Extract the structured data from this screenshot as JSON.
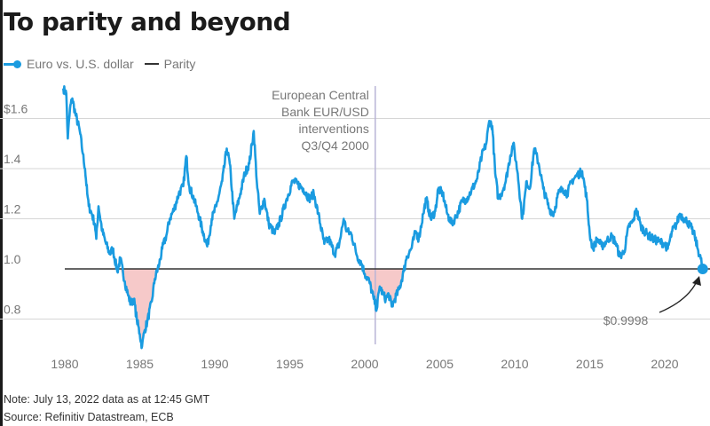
{
  "chart_data": {
    "type": "line",
    "title": "To parity and beyond",
    "legend": {
      "placement": "top-left",
      "items": [
        {
          "label": "Euro vs. U.S. dollar",
          "color": "#1a9be0",
          "marker": "dot"
        },
        {
          "label": "Parity",
          "color": "#333333",
          "marker": "line"
        }
      ]
    },
    "xlabel": "",
    "ylabel": "",
    "xlim": [
      1979.9,
      2022.6
    ],
    "ylim": [
      0.65,
      1.75
    ],
    "grid": true,
    "y_ticks": [
      {
        "value": 1.6,
        "label": "$1.6"
      },
      {
        "value": 1.4,
        "label": "1.4"
      },
      {
        "value": 1.2,
        "label": "1.2"
      },
      {
        "value": 1.0,
        "label": "1.0"
      },
      {
        "value": 0.8,
        "label": "0.8"
      }
    ],
    "x_ticks": [
      {
        "value": 1980,
        "label": "1980"
      },
      {
        "value": 1985,
        "label": "1985"
      },
      {
        "value": 1990,
        "label": "1990"
      },
      {
        "value": 1995,
        "label": "1995"
      },
      {
        "value": 2000,
        "label": "2000"
      },
      {
        "value": 2005,
        "label": "2005"
      },
      {
        "value": 2010,
        "label": "2010"
      },
      {
        "value": 2015,
        "label": "2015"
      },
      {
        "value": 2020,
        "label": "2020"
      }
    ],
    "series": [
      {
        "name": "Euro vs. U.S. dollar",
        "color": "#1a9be0",
        "points": [
          [
            1979.9,
            1.72
          ],
          [
            1980.1,
            1.7
          ],
          [
            1980.2,
            1.52
          ],
          [
            1980.35,
            1.64
          ],
          [
            1980.5,
            1.68
          ],
          [
            1980.7,
            1.62
          ],
          [
            1981.0,
            1.55
          ],
          [
            1981.2,
            1.46
          ],
          [
            1981.35,
            1.4
          ],
          [
            1981.5,
            1.3
          ],
          [
            1981.6,
            1.25
          ],
          [
            1981.8,
            1.22
          ],
          [
            1982.0,
            1.18
          ],
          [
            1982.1,
            1.12
          ],
          [
            1982.25,
            1.25
          ],
          [
            1982.5,
            1.15
          ],
          [
            1982.75,
            1.1
          ],
          [
            1983.0,
            1.06
          ],
          [
            1983.2,
            1.08
          ],
          [
            1983.5,
            0.99
          ],
          [
            1983.7,
            1.04
          ],
          [
            1984.0,
            0.95
          ],
          [
            1984.2,
            0.9
          ],
          [
            1984.4,
            0.86
          ],
          [
            1984.6,
            0.88
          ],
          [
            1984.8,
            0.8
          ],
          [
            1985.0,
            0.74
          ],
          [
            1985.15,
            0.69
          ],
          [
            1985.3,
            0.75
          ],
          [
            1985.5,
            0.79
          ],
          [
            1985.8,
            0.87
          ],
          [
            1986.0,
            0.96
          ],
          [
            1986.3,
            1.02
          ],
          [
            1986.5,
            1.08
          ],
          [
            1986.8,
            1.14
          ],
          [
            1987.0,
            1.2
          ],
          [
            1987.3,
            1.24
          ],
          [
            1987.6,
            1.3
          ],
          [
            1987.9,
            1.33
          ],
          [
            1988.1,
            1.45
          ],
          [
            1988.3,
            1.33
          ],
          [
            1988.6,
            1.28
          ],
          [
            1988.9,
            1.22
          ],
          [
            1989.2,
            1.15
          ],
          [
            1989.5,
            1.09
          ],
          [
            1989.8,
            1.2
          ],
          [
            1990.1,
            1.25
          ],
          [
            1990.5,
            1.35
          ],
          [
            1990.8,
            1.48
          ],
          [
            1991.0,
            1.42
          ],
          [
            1991.3,
            1.2
          ],
          [
            1991.7,
            1.3
          ],
          [
            1992.0,
            1.38
          ],
          [
            1992.3,
            1.42
          ],
          [
            1992.6,
            1.55
          ],
          [
            1992.8,
            1.35
          ],
          [
            1993.0,
            1.22
          ],
          [
            1993.3,
            1.28
          ],
          [
            1993.6,
            1.18
          ],
          [
            1994.0,
            1.14
          ],
          [
            1994.4,
            1.2
          ],
          [
            1994.8,
            1.28
          ],
          [
            1995.2,
            1.35
          ],
          [
            1995.5,
            1.34
          ],
          [
            1995.9,
            1.32
          ],
          [
            1996.3,
            1.28
          ],
          [
            1996.6,
            1.3
          ],
          [
            1996.9,
            1.22
          ],
          [
            1997.3,
            1.1
          ],
          [
            1997.6,
            1.12
          ],
          [
            1998.0,
            1.06
          ],
          [
            1998.3,
            1.1
          ],
          [
            1998.6,
            1.2
          ],
          [
            1998.8,
            1.15
          ],
          [
            1999.1,
            1.14
          ],
          [
            1999.5,
            1.05
          ],
          [
            1999.8,
            1.02
          ],
          [
            2000.0,
            0.98
          ],
          [
            2000.3,
            0.95
          ],
          [
            2000.6,
            0.88
          ],
          [
            2000.8,
            0.84
          ],
          [
            2001.0,
            0.93
          ],
          [
            2001.2,
            0.9
          ],
          [
            2001.4,
            0.88
          ],
          [
            2001.6,
            0.9
          ],
          [
            2001.8,
            0.85
          ],
          [
            2002.0,
            0.88
          ],
          [
            2002.3,
            0.92
          ],
          [
            2002.6,
            0.99
          ],
          [
            2002.8,
            1.05
          ],
          [
            2003.1,
            1.08
          ],
          [
            2003.4,
            1.15
          ],
          [
            2003.6,
            1.12
          ],
          [
            2003.9,
            1.22
          ],
          [
            2004.1,
            1.28
          ],
          [
            2004.4,
            1.2
          ],
          [
            2004.7,
            1.23
          ],
          [
            2004.9,
            1.32
          ],
          [
            2005.2,
            1.3
          ],
          [
            2005.5,
            1.22
          ],
          [
            2005.8,
            1.18
          ],
          [
            2006.1,
            1.21
          ],
          [
            2006.5,
            1.27
          ],
          [
            2006.8,
            1.28
          ],
          [
            2007.1,
            1.31
          ],
          [
            2007.5,
            1.36
          ],
          [
            2007.8,
            1.45
          ],
          [
            2008.1,
            1.5
          ],
          [
            2008.3,
            1.59
          ],
          [
            2008.5,
            1.57
          ],
          [
            2008.7,
            1.38
          ],
          [
            2008.9,
            1.28
          ],
          [
            2009.1,
            1.3
          ],
          [
            2009.4,
            1.35
          ],
          [
            2009.7,
            1.45
          ],
          [
            2009.9,
            1.5
          ],
          [
            2010.2,
            1.38
          ],
          [
            2010.5,
            1.2
          ],
          [
            2010.8,
            1.35
          ],
          [
            2011.0,
            1.32
          ],
          [
            2011.3,
            1.48
          ],
          [
            2011.6,
            1.42
          ],
          [
            2011.9,
            1.32
          ],
          [
            2012.3,
            1.24
          ],
          [
            2012.6,
            1.22
          ],
          [
            2012.9,
            1.3
          ],
          [
            2013.2,
            1.32
          ],
          [
            2013.5,
            1.3
          ],
          [
            2013.8,
            1.35
          ],
          [
            2014.1,
            1.37
          ],
          [
            2014.5,
            1.39
          ],
          [
            2014.8,
            1.28
          ],
          [
            2015.0,
            1.14
          ],
          [
            2015.2,
            1.08
          ],
          [
            2015.5,
            1.12
          ],
          [
            2015.8,
            1.09
          ],
          [
            2016.1,
            1.11
          ],
          [
            2016.4,
            1.13
          ],
          [
            2016.7,
            1.11
          ],
          [
            2017.0,
            1.05
          ],
          [
            2017.3,
            1.07
          ],
          [
            2017.6,
            1.17
          ],
          [
            2017.9,
            1.19
          ],
          [
            2018.1,
            1.24
          ],
          [
            2018.4,
            1.17
          ],
          [
            2018.8,
            1.14
          ],
          [
            2019.2,
            1.12
          ],
          [
            2019.6,
            1.11
          ],
          [
            2020.0,
            1.1
          ],
          [
            2020.2,
            1.08
          ],
          [
            2020.5,
            1.15
          ],
          [
            2020.8,
            1.18
          ],
          [
            2021.0,
            1.22
          ],
          [
            2021.3,
            1.2
          ],
          [
            2021.5,
            1.19
          ],
          [
            2021.8,
            1.16
          ],
          [
            2022.0,
            1.13
          ],
          [
            2022.2,
            1.08
          ],
          [
            2022.4,
            1.04
          ],
          [
            2022.53,
            0.9998
          ]
        ]
      },
      {
        "name": "Parity",
        "color": "#333333",
        "value": 1.0
      }
    ],
    "shaded_regions": [
      {
        "label": "below parity",
        "x_range": [
          1983.6,
          1986.0
        ],
        "color": "#f6c9c9"
      },
      {
        "label": "below parity",
        "x_range": [
          1999.9,
          2002.8
        ],
        "color": "#f6c9c9"
      }
    ],
    "annotations": [
      {
        "type": "vline",
        "x": 2000.7,
        "color": "#b9b4d6",
        "text_lines": [
          "European Central",
          "Bank EUR/USD",
          "interventions",
          "Q3/Q4 2000"
        ]
      },
      {
        "type": "point-label",
        "x": 2022.53,
        "y": 0.9998,
        "text": "$0.9998"
      }
    ]
  },
  "footer": {
    "note": "Note: July 13, 2022 data as at 12:45 GMT",
    "source": "Source: Refinitiv Datastream, ECB"
  }
}
